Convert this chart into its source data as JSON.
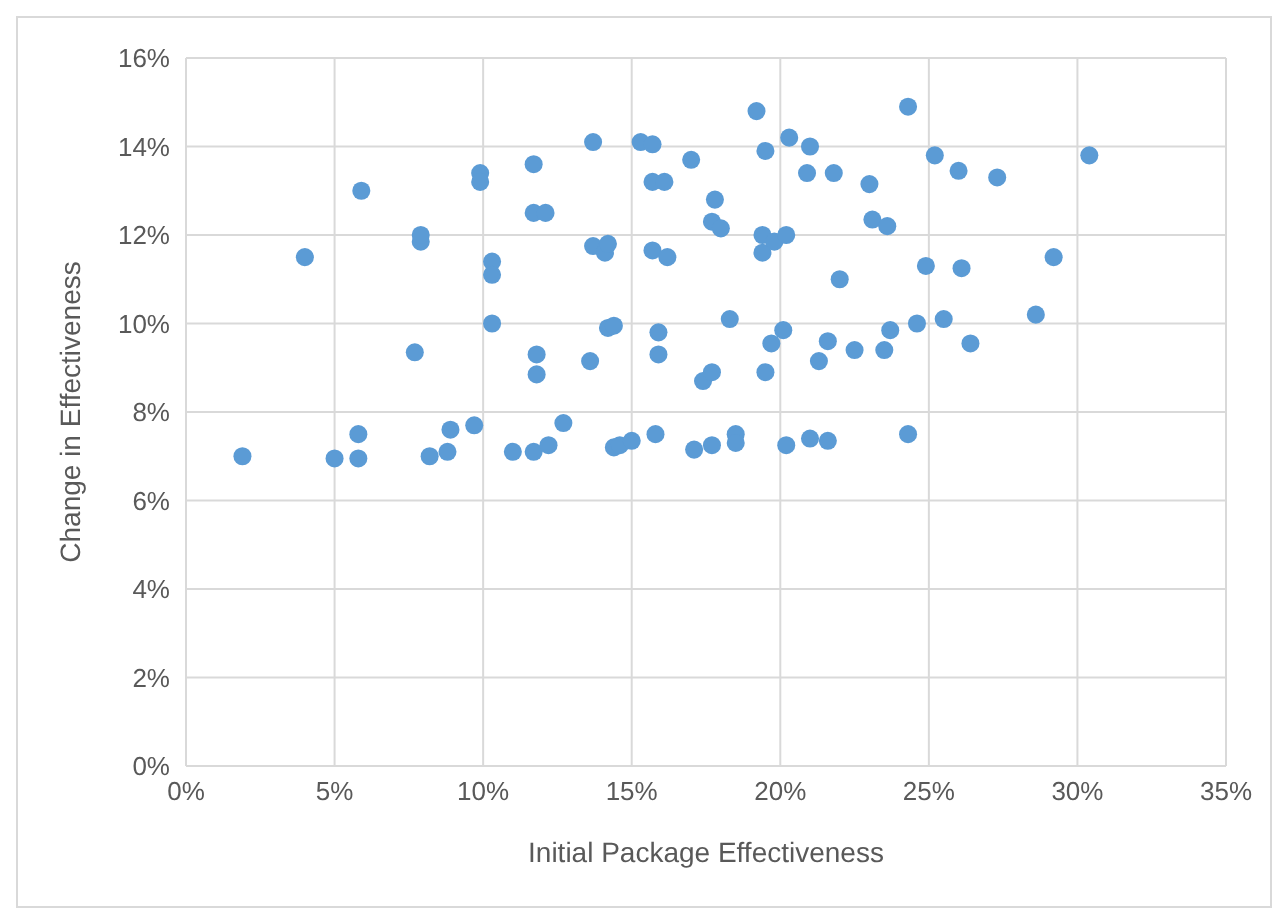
{
  "chart_data": {
    "type": "scatter",
    "xlabel": "Initial Package Effectiveness",
    "ylabel": "Change in Effectiveness",
    "color": "#5b9bd5",
    "marker": "circle",
    "grid": true,
    "xlim": [
      0,
      35
    ],
    "ylim": [
      0,
      16
    ],
    "xticks": [
      {
        "value": 0,
        "label": "0%"
      },
      {
        "value": 5,
        "label": "5%"
      },
      {
        "value": 10,
        "label": "10%"
      },
      {
        "value": 15,
        "label": "15%"
      },
      {
        "value": 20,
        "label": "20%"
      },
      {
        "value": 25,
        "label": "25%"
      },
      {
        "value": 30,
        "label": "30%"
      },
      {
        "value": 35,
        "label": "35%"
      }
    ],
    "yticks": [
      {
        "value": 0,
        "label": "0%"
      },
      {
        "value": 2,
        "label": "2%"
      },
      {
        "value": 4,
        "label": "4%"
      },
      {
        "value": 6,
        "label": "6%"
      },
      {
        "value": 8,
        "label": "8%"
      },
      {
        "value": 10,
        "label": "10%"
      },
      {
        "value": 12,
        "label": "12%"
      },
      {
        "value": 14,
        "label": "14%"
      },
      {
        "value": 16,
        "label": "16%"
      }
    ],
    "x": [
      1.9,
      4.0,
      5.0,
      5.8,
      5.8,
      5.9,
      7.7,
      7.9,
      7.9,
      8.2,
      8.9,
      8.8,
      9.7,
      9.9,
      9.9,
      10.3,
      10.3,
      10.3,
      11.0,
      11.7,
      11.7,
      11.7,
      11.8,
      11.8,
      12.1,
      12.2,
      12.7,
      13.6,
      13.7,
      13.7,
      14.1,
      14.2,
      14.2,
      14.4,
      14.4,
      14.6,
      15.0,
      15.3,
      15.7,
      15.7,
      15.7,
      15.8,
      15.9,
      15.9,
      16.1,
      16.2,
      17.0,
      17.1,
      17.4,
      17.7,
      17.7,
      17.7,
      17.8,
      18.0,
      18.3,
      18.5,
      18.5,
      19.2,
      19.4,
      19.4,
      19.5,
      19.5,
      19.7,
      19.8,
      20.1,
      20.2,
      20.2,
      20.3,
      20.9,
      21.0,
      21.0,
      21.3,
      21.6,
      21.6,
      21.8,
      22.0,
      22.5,
      23.0,
      23.1,
      23.5,
      23.6,
      23.7,
      24.3,
      24.3,
      24.6,
      24.9,
      25.2,
      25.5,
      26.0,
      26.1,
      26.4,
      27.3,
      28.6,
      29.2,
      30.4
    ],
    "values": [
      7.0,
      11.5,
      6.95,
      6.95,
      7.5,
      13.0,
      9.35,
      11.85,
      12.0,
      7.0,
      7.6,
      7.1,
      7.7,
      13.4,
      13.2,
      11.4,
      11.1,
      10.0,
      7.1,
      7.1,
      12.5,
      13.6,
      9.3,
      8.85,
      12.5,
      7.25,
      7.75,
      9.15,
      14.1,
      11.75,
      11.6,
      11.8,
      9.9,
      9.95,
      7.2,
      7.25,
      7.35,
      14.1,
      14.05,
      13.2,
      11.65,
      7.5,
      9.3,
      9.8,
      13.2,
      11.5,
      13.7,
      7.15,
      8.7,
      8.9,
      7.25,
      12.3,
      12.8,
      12.15,
      10.1,
      7.5,
      7.3,
      14.8,
      12.0,
      11.6,
      13.9,
      8.9,
      9.55,
      11.85,
      9.85,
      12.0,
      7.25,
      14.2,
      13.4,
      14.0,
      7.4,
      9.15,
      9.6,
      7.35,
      13.4,
      11.0,
      9.4,
      13.15,
      12.35,
      9.4,
      12.2,
      9.85,
      14.9,
      7.5,
      10.0,
      11.3,
      13.8,
      10.1,
      13.45,
      11.25,
      9.55,
      13.3,
      10.2,
      11.5,
      13.8
    ]
  }
}
